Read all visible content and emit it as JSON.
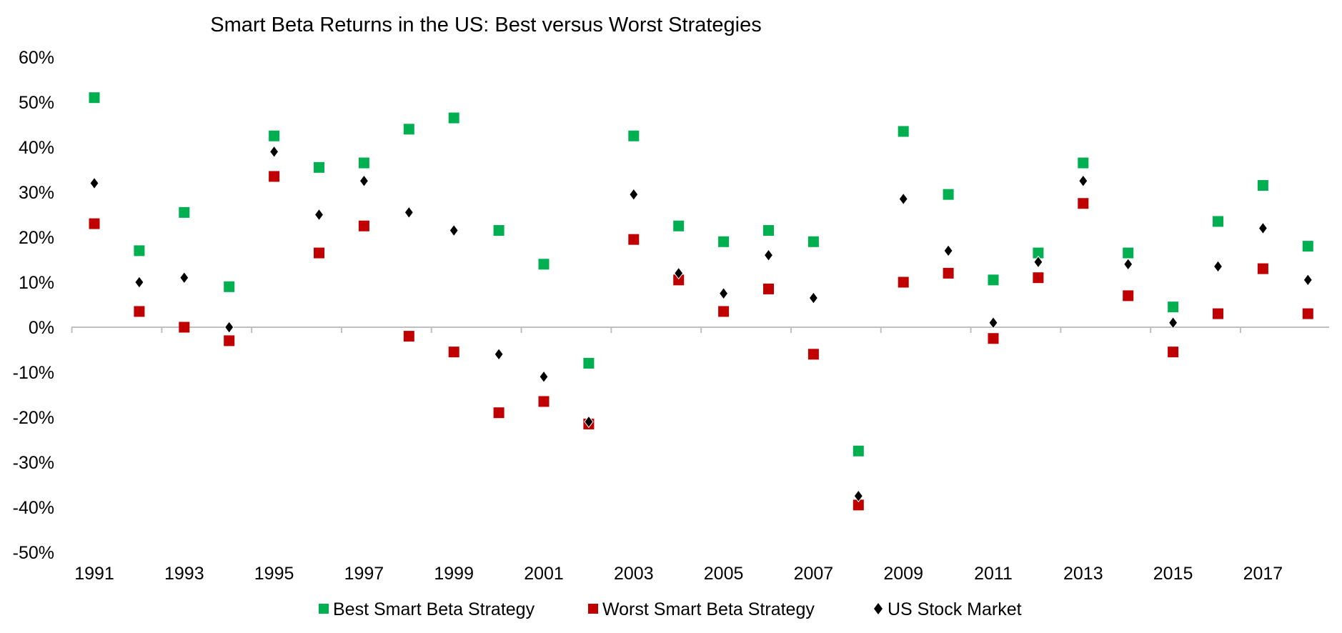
{
  "chart_data": {
    "type": "scatter",
    "title": "Smart Beta Returns in the US: Best versus Worst Strategies",
    "xlabel": "",
    "ylabel": "",
    "x": [
      1991,
      1992,
      1993,
      1994,
      1995,
      1996,
      1997,
      1998,
      1999,
      2000,
      2001,
      2002,
      2003,
      2004,
      2005,
      2006,
      2007,
      2008,
      2009,
      2010,
      2011,
      2012,
      2013,
      2014,
      2015,
      2016,
      2017,
      2018
    ],
    "x_tick_labels": [
      "1991",
      "1993",
      "1995",
      "1997",
      "1999",
      "2001",
      "2003",
      "2005",
      "2007",
      "2009",
      "2011",
      "2013",
      "2015",
      "2017"
    ],
    "ylim": [
      -50,
      60
    ],
    "y_tick_labels": [
      "60%",
      "50%",
      "40%",
      "30%",
      "20%",
      "10%",
      "0%",
      "-10%",
      "-20%",
      "-30%",
      "-40%",
      "-50%"
    ],
    "grid": false,
    "legend_position": "bottom",
    "series": [
      {
        "name": "Best Smart Beta Strategy",
        "marker": "square",
        "color": "#00b050",
        "values": [
          51,
          17,
          25.5,
          9,
          42.5,
          35.5,
          36.5,
          44,
          46.5,
          21.5,
          14,
          -8,
          42.5,
          22.5,
          19,
          21.5,
          19,
          -27.5,
          43.5,
          29.5,
          10.5,
          16.5,
          36.5,
          16.5,
          4.5,
          23.5,
          31.5,
          18
        ]
      },
      {
        "name": "Worst Smart Beta Strategy",
        "marker": "square",
        "color": "#c00000",
        "values": [
          23,
          3.5,
          0,
          -3,
          33.5,
          16.5,
          22.5,
          -2,
          -5.5,
          -19,
          -16.5,
          -21.5,
          19.5,
          10.5,
          3.5,
          8.5,
          -6,
          -39.5,
          10,
          12,
          -2.5,
          11,
          27.5,
          7,
          -5.5,
          3,
          13,
          3
        ]
      },
      {
        "name": "US Stock Market",
        "marker": "diamond",
        "color": "#000000",
        "values": [
          32,
          10,
          11,
          0,
          39,
          25,
          32.5,
          25.5,
          21.5,
          -6,
          -11,
          -21,
          29.5,
          12,
          7.5,
          16,
          6.5,
          -37.5,
          28.5,
          17,
          1,
          14.5,
          32.5,
          14,
          1,
          13.5,
          22,
          10.5
        ]
      }
    ]
  }
}
